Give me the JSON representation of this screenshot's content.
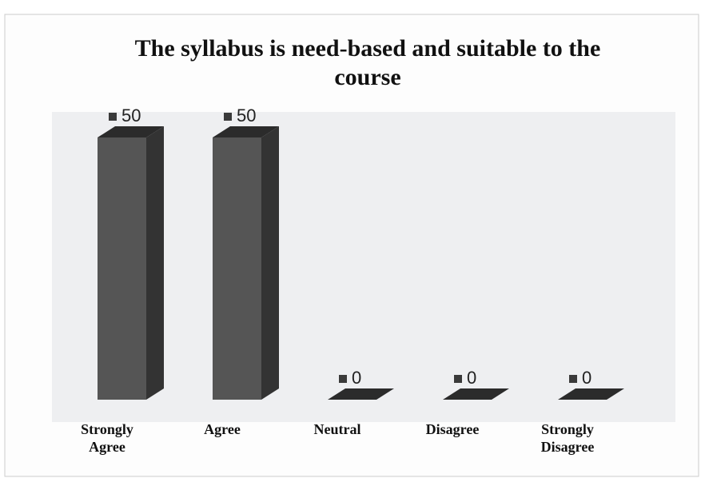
{
  "chart_data": {
    "type": "bar3d",
    "title": "The syllabus is need-based and suitable to the course",
    "categories": [
      "Strongly Agree",
      "Agree",
      "Neutral",
      "Disagree",
      "Strongly Disagree"
    ],
    "values": [
      50,
      50,
      0,
      0,
      0
    ],
    "color": "#555555"
  }
}
